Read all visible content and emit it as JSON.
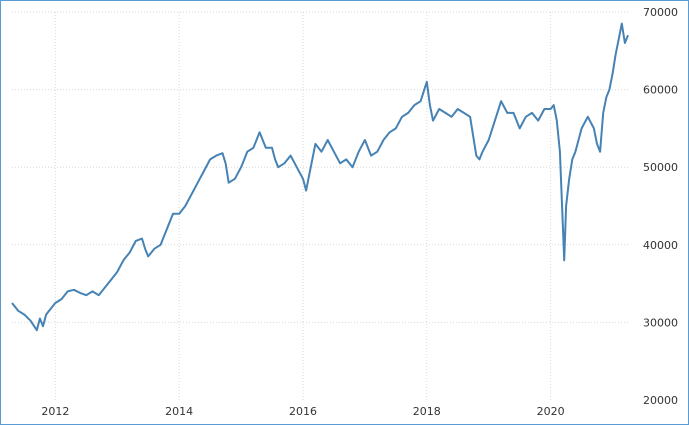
{
  "chart_data": {
    "type": "line",
    "title": "",
    "xlabel": "",
    "ylabel": "",
    "x_ticks": [
      "2012",
      "2014",
      "2016",
      "2018",
      "2020"
    ],
    "y_ticks": [
      "20000",
      "30000",
      "40000",
      "50000",
      "60000",
      "70000"
    ],
    "xlim": [
      2011.3,
      2021.25
    ],
    "ylim": [
      20000,
      70000
    ],
    "grid": true,
    "legend": "none",
    "series": [
      {
        "color": "#4682b4",
        "x": [
          2011.3,
          2011.4,
          2011.5,
          2011.6,
          2011.7,
          2011.75,
          2011.8,
          2011.85,
          2011.9,
          2011.95,
          2012.0,
          2012.1,
          2012.2,
          2012.3,
          2012.4,
          2012.5,
          2012.6,
          2012.7,
          2012.8,
          2012.9,
          2013.0,
          2013.1,
          2013.2,
          2013.3,
          2013.4,
          2013.45,
          2013.5,
          2013.6,
          2013.7,
          2013.8,
          2013.9,
          2014.0,
          2014.1,
          2014.2,
          2014.3,
          2014.4,
          2014.5,
          2014.6,
          2014.7,
          2014.75,
          2014.8,
          2014.9,
          2015.0,
          2015.1,
          2015.2,
          2015.3,
          2015.4,
          2015.5,
          2015.55,
          2015.6,
          2015.7,
          2015.8,
          2015.9,
          2016.0,
          2016.05,
          2016.1,
          2016.2,
          2016.3,
          2016.4,
          2016.5,
          2016.6,
          2016.7,
          2016.8,
          2016.9,
          2017.0,
          2017.1,
          2017.2,
          2017.3,
          2017.4,
          2017.5,
          2017.6,
          2017.7,
          2017.8,
          2017.9,
          2018.0,
          2018.05,
          2018.1,
          2018.2,
          2018.3,
          2018.4,
          2018.5,
          2018.6,
          2018.7,
          2018.75,
          2018.8,
          2018.85,
          2018.9,
          2019.0,
          2019.1,
          2019.2,
          2019.3,
          2019.4,
          2019.5,
          2019.6,
          2019.7,
          2019.8,
          2019.9,
          2020.0,
          2020.05,
          2020.1,
          2020.15,
          2020.2,
          2020.22,
          2020.25,
          2020.3,
          2020.35,
          2020.4,
          2020.5,
          2020.6,
          2020.7,
          2020.75,
          2020.8,
          2020.85,
          2020.9,
          2020.95,
          2021.0,
          2021.05,
          2021.1,
          2021.15,
          2021.2,
          2021.25
        ],
        "y": [
          32500,
          31500,
          31000,
          30200,
          29000,
          30500,
          29500,
          31000,
          31500,
          32000,
          32500,
          33000,
          34000,
          34200,
          33800,
          33500,
          34000,
          33500,
          34500,
          35500,
          36500,
          38000,
          39000,
          40500,
          40800,
          39500,
          38500,
          39500,
          40000,
          42000,
          44000,
          44000,
          45000,
          46500,
          48000,
          49500,
          51000,
          51500,
          51800,
          50500,
          48000,
          48500,
          50000,
          52000,
          52500,
          54500,
          52500,
          52500,
          51000,
          50000,
          50500,
          51500,
          50000,
          48500,
          47000,
          49000,
          53000,
          52000,
          53500,
          52000,
          50500,
          51000,
          50000,
          52000,
          53500,
          51500,
          52000,
          53500,
          54500,
          55000,
          56500,
          57000,
          58000,
          58500,
          61000,
          58000,
          56000,
          57500,
          57000,
          56500,
          57500,
          57000,
          56500,
          54000,
          51500,
          51000,
          52000,
          53500,
          56000,
          58500,
          57000,
          57000,
          55000,
          56500,
          57000,
          56000,
          57500,
          57500,
          58000,
          56000,
          52000,
          42000,
          38000,
          45000,
          48500,
          51000,
          52000,
          55000,
          56500,
          55000,
          53000,
          52000,
          57000,
          59000,
          60000,
          62000,
          64500,
          66500,
          68500,
          66000,
          67000
        ]
      }
    ]
  }
}
